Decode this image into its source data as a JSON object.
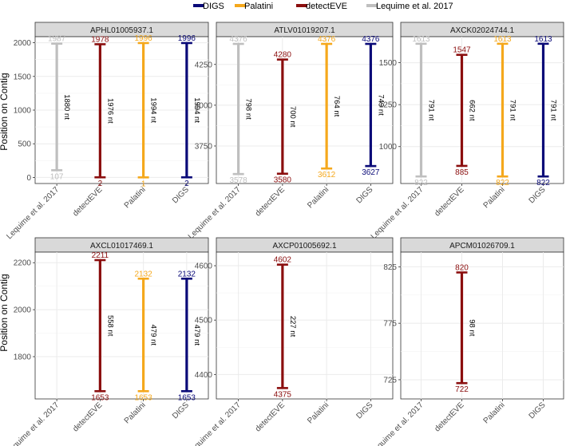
{
  "colors": {
    "DIGS": "#0a0a78",
    "Palatini": "#f5a81c",
    "detectEVE": "#8b0e0e",
    "Lequime et al. 2017": "#bfbfbf",
    "panel_header_bg": "#d9d9d9",
    "grid": "#ebebeb",
    "axis_text": "#4d4d4d"
  },
  "chart_data": {
    "type": "error-bar-ranges",
    "ylabel": "Position on Contig",
    "legend": {
      "position": "top",
      "entries": [
        "DIGS",
        "Palatini",
        "detectEVE",
        "Lequime et al. 2017"
      ]
    },
    "categories": [
      "Lequime et al. 2017",
      "detectEVE",
      "Palatini",
      "DIGS"
    ],
    "grid": true,
    "panels": [
      {
        "title": "APHL01005937.1",
        "ylim": [
          -90,
          2090
        ],
        "yticks": [
          0,
          500,
          1000,
          1500,
          2000
        ],
        "ranges": [
          {
            "category": "Lequime et al. 2017",
            "start": 107,
            "end": 1987,
            "start_label": "107",
            "end_label": "1987",
            "length_label": "1880 nt"
          },
          {
            "category": "detectEVE",
            "start": 2,
            "end": 1978,
            "start_label": "2",
            "end_label": "1978",
            "length_label": "1976 nt"
          },
          {
            "category": "Palatini",
            "start": 1,
            "end": 1996,
            "start_label": "1",
            "end_label": "1996",
            "length_label": "1994 nt"
          },
          {
            "category": "DIGS",
            "start": 2,
            "end": 1996,
            "start_label": "2",
            "end_label": "1996",
            "length_label": "1994 nt"
          }
        ]
      },
      {
        "title": "ATLV01019207.1",
        "ylim": [
          3520,
          4420
        ],
        "yticks": [
          3750,
          4000,
          4250
        ],
        "ranges": [
          {
            "category": "Lequime et al. 2017",
            "start": 3578,
            "end": 4376,
            "start_label": "3578",
            "end_label": "4376",
            "length_label": "798 nt"
          },
          {
            "category": "detectEVE",
            "start": 3580,
            "end": 4280,
            "start_label": "3580",
            "end_label": "4280",
            "length_label": "700 nt"
          },
          {
            "category": "Palatini",
            "start": 3612,
            "end": 4376,
            "start_label": "3612",
            "end_label": "4376",
            "length_label": "764 nt"
          },
          {
            "category": "DIGS",
            "start": 3627,
            "end": 4376,
            "start_label": "3627",
            "end_label": "4376",
            "length_label": "749 nt"
          }
        ]
      },
      {
        "title": "AXCK02024744.1",
        "ylim": [
          780,
          1655
        ],
        "yticks": [
          1000,
          1250,
          1500
        ],
        "ranges": [
          {
            "category": "Lequime et al. 2017",
            "start": 822,
            "end": 1613,
            "start_label": "822",
            "end_label": "1613",
            "length_label": "791 nt"
          },
          {
            "category": "detectEVE",
            "start": 885,
            "end": 1547,
            "start_label": "885",
            "end_label": "1547",
            "length_label": "662 nt"
          },
          {
            "category": "Palatini",
            "start": 822,
            "end": 1613,
            "start_label": "822",
            "end_label": "1613",
            "length_label": "791 nt"
          },
          {
            "category": "DIGS",
            "start": 822,
            "end": 1613,
            "start_label": "822",
            "end_label": "1613",
            "length_label": "791 nt"
          }
        ]
      },
      {
        "title": "AXCL01017469.1",
        "ylim": [
          1620,
          2245
        ],
        "yticks": [
          1800,
          2000,
          2200
        ],
        "ranges": [
          {
            "category": "detectEVE",
            "start": 1653,
            "end": 2211,
            "start_label": "1653",
            "end_label": "2211",
            "length_label": "558 nt"
          },
          {
            "category": "Palatini",
            "start": 1653,
            "end": 2132,
            "start_label": "1653",
            "end_label": "2132",
            "length_label": "479 nt"
          },
          {
            "category": "DIGS",
            "start": 1653,
            "end": 2132,
            "start_label": "1653",
            "end_label": "2132",
            "length_label": "479 nt"
          }
        ]
      },
      {
        "title": "AXCP01005692.1",
        "ylim": [
          4355,
          4625
        ],
        "yticks": [
          4400,
          4500,
          4600
        ],
        "ranges": [
          {
            "category": "detectEVE",
            "start": 4375,
            "end": 4602,
            "start_label": "4375",
            "end_label": "4602",
            "length_label": "227 nt"
          }
        ]
      },
      {
        "title": "APCM01026709.1",
        "ylim": [
          708,
          838
        ],
        "yticks": [
          725,
          775,
          825
        ],
        "ranges": [
          {
            "category": "detectEVE",
            "start": 722,
            "end": 820,
            "start_label": "722",
            "end_label": "820",
            "length_label": "98 nt"
          }
        ]
      }
    ]
  }
}
